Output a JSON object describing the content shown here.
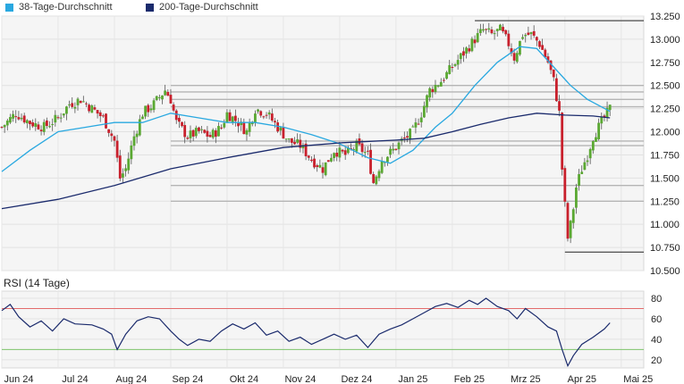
{
  "legend": {
    "items": [
      {
        "label": "38-Tage-Durchschnitt",
        "color": "#29a8e0"
      },
      {
        "label": "200-Tage-Durchschnitt",
        "color": "#1a2a6c"
      }
    ]
  },
  "rsi_title": "RSI (14 Tage)",
  "chart_data": [
    {
      "type": "candlestick",
      "title": "",
      "ylim": [
        10.5,
        13.25
      ],
      "y_ticks": [
        10.5,
        10.75,
        11.0,
        11.25,
        11.5,
        11.75,
        12.0,
        12.25,
        12.5,
        12.75,
        13.0,
        13.25
      ],
      "y_tick_labels": [
        "10.500",
        "10.750",
        "11.000",
        "11.250",
        "11.500",
        "11.750",
        "12.000",
        "12.250",
        "12.500",
        "12.750",
        "13.000",
        "13.250"
      ],
      "x_tick_labels": [
        "Jun 24",
        "Jul 24",
        "Aug 24",
        "Sep 24",
        "Okt 24",
        "Nov 24",
        "Dez 24",
        "Jan 25",
        "Feb 25",
        "Mrz 25",
        "Apr 25",
        "Mai 25"
      ],
      "x_tick_months": [
        0,
        1,
        2,
        3,
        4,
        5,
        6,
        7,
        8,
        9,
        10,
        11
      ],
      "x_range_months": [
        0,
        11.4
      ],
      "grid": true,
      "legend_position": "top-left",
      "up_color": "#5aa832",
      "down_color": "#c8202c",
      "price_path": [
        [
          0.0,
          12.05
        ],
        [
          0.25,
          12.2
        ],
        [
          0.5,
          12.1
        ],
        [
          0.75,
          12.05
        ],
        [
          1.0,
          12.15
        ],
        [
          1.2,
          12.3
        ],
        [
          1.4,
          12.35
        ],
        [
          1.6,
          12.25
        ],
        [
          1.8,
          12.15
        ],
        [
          2.0,
          11.9
        ],
        [
          2.1,
          11.5
        ],
        [
          2.2,
          11.6
        ],
        [
          2.35,
          11.95
        ],
        [
          2.5,
          12.2
        ],
        [
          2.7,
          12.3
        ],
        [
          2.9,
          12.45
        ],
        [
          3.0,
          12.35
        ],
        [
          3.1,
          12.1
        ],
        [
          3.3,
          11.95
        ],
        [
          3.5,
          12.0
        ],
        [
          3.7,
          11.95
        ],
        [
          3.9,
          12.05
        ],
        [
          4.0,
          12.2
        ],
        [
          4.2,
          12.1
        ],
        [
          4.35,
          12.0
        ],
        [
          4.5,
          12.25
        ],
        [
          4.7,
          12.2
        ],
        [
          4.9,
          12.05
        ],
        [
          5.1,
          11.9
        ],
        [
          5.3,
          11.85
        ],
        [
          5.5,
          11.7
        ],
        [
          5.7,
          11.6
        ],
        [
          5.9,
          11.8
        ],
        [
          6.1,
          11.75
        ],
        [
          6.3,
          11.85
        ],
        [
          6.5,
          11.75
        ],
        [
          6.6,
          11.45
        ],
        [
          6.75,
          11.7
        ],
        [
          6.95,
          11.8
        ],
        [
          7.1,
          11.9
        ],
        [
          7.3,
          12.0
        ],
        [
          7.45,
          12.2
        ],
        [
          7.6,
          12.45
        ],
        [
          7.8,
          12.55
        ],
        [
          8.0,
          12.7
        ],
        [
          8.2,
          12.85
        ],
        [
          8.4,
          13.0
        ],
        [
          8.55,
          13.1
        ],
        [
          8.7,
          13.05
        ],
        [
          8.85,
          13.1
        ],
        [
          9.0,
          12.95
        ],
        [
          9.1,
          12.8
        ],
        [
          9.25,
          13.05
        ],
        [
          9.4,
          13.05
        ],
        [
          9.55,
          12.95
        ],
        [
          9.7,
          12.75
        ],
        [
          9.8,
          12.55
        ],
        [
          9.9,
          12.2
        ],
        [
          9.95,
          11.6
        ],
        [
          10.0,
          11.2
        ],
        [
          10.05,
          10.85
        ],
        [
          10.12,
          11.05
        ],
        [
          10.2,
          11.4
        ],
        [
          10.3,
          11.6
        ],
        [
          10.4,
          11.75
        ],
        [
          10.5,
          11.95
        ],
        [
          10.6,
          12.05
        ],
        [
          10.7,
          12.15
        ],
        [
          10.8,
          12.25
        ]
      ],
      "series": [
        {
          "name": "38-Tage-Durchschnitt",
          "color": "#29a8e0",
          "points": [
            [
              0.0,
              11.57
            ],
            [
              0.5,
              11.8
            ],
            [
              1.0,
              12.0
            ],
            [
              1.5,
              12.05
            ],
            [
              2.0,
              12.1
            ],
            [
              2.5,
              12.1
            ],
            [
              3.0,
              12.2
            ],
            [
              3.5,
              12.15
            ],
            [
              4.0,
              12.1
            ],
            [
              4.5,
              12.1
            ],
            [
              5.0,
              12.05
            ],
            [
              5.5,
              11.97
            ],
            [
              6.0,
              11.87
            ],
            [
              6.5,
              11.72
            ],
            [
              6.9,
              11.66
            ],
            [
              7.3,
              11.8
            ],
            [
              7.7,
              12.05
            ],
            [
              8.0,
              12.2
            ],
            [
              8.4,
              12.5
            ],
            [
              8.8,
              12.75
            ],
            [
              9.2,
              12.92
            ],
            [
              9.5,
              12.9
            ],
            [
              9.8,
              12.7
            ],
            [
              10.1,
              12.5
            ],
            [
              10.4,
              12.35
            ],
            [
              10.8,
              12.22
            ]
          ]
        },
        {
          "name": "200-Tage-Durchschnitt",
          "color": "#1a2a6c",
          "points": [
            [
              0.0,
              11.17
            ],
            [
              1.0,
              11.27
            ],
            [
              2.0,
              11.42
            ],
            [
              3.0,
              11.6
            ],
            [
              4.0,
              11.72
            ],
            [
              5.0,
              11.83
            ],
            [
              6.0,
              11.88
            ],
            [
              7.0,
              11.91
            ],
            [
              7.5,
              11.93
            ],
            [
              8.0,
              12.0
            ],
            [
              8.5,
              12.08
            ],
            [
              9.0,
              12.15
            ],
            [
              9.5,
              12.2
            ],
            [
              10.0,
              12.18
            ],
            [
              10.5,
              12.17
            ],
            [
              10.8,
              12.15
            ]
          ]
        }
      ],
      "horizontal_levels": [
        13.2,
        12.5,
        12.43,
        12.35,
        12.27,
        11.9,
        11.85,
        11.42,
        11.25,
        10.7
      ],
      "last_close": 12.25
    },
    {
      "type": "line",
      "title": "RSI (14 Tage)",
      "ylim": [
        12,
        87
      ],
      "y_ticks": [
        20,
        40,
        60,
        80
      ],
      "y_tick_labels": [
        "20",
        "40",
        "60",
        "80"
      ],
      "reference_lines": [
        {
          "value": 70,
          "color": "#e36b6b"
        },
        {
          "value": 30,
          "color": "#7cc46a"
        }
      ],
      "series": [
        {
          "name": "",
          "color": "#1a2a6c",
          "points": [
            [
              0.0,
              68
            ],
            [
              0.15,
              74
            ],
            [
              0.3,
              62
            ],
            [
              0.5,
              52
            ],
            [
              0.7,
              58
            ],
            [
              0.9,
              48
            ],
            [
              1.1,
              60
            ],
            [
              1.3,
              55
            ],
            [
              1.6,
              54
            ],
            [
              1.8,
              50
            ],
            [
              1.95,
              45
            ],
            [
              2.05,
              30
            ],
            [
              2.2,
              45
            ],
            [
              2.4,
              58
            ],
            [
              2.6,
              62
            ],
            [
              2.8,
              60
            ],
            [
              3.0,
              48
            ],
            [
              3.15,
              40
            ],
            [
              3.3,
              34
            ],
            [
              3.5,
              40
            ],
            [
              3.7,
              38
            ],
            [
              3.9,
              48
            ],
            [
              4.1,
              55
            ],
            [
              4.3,
              50
            ],
            [
              4.5,
              56
            ],
            [
              4.7,
              44
            ],
            [
              4.9,
              48
            ],
            [
              5.1,
              38
            ],
            [
              5.3,
              42
            ],
            [
              5.5,
              35
            ],
            [
              5.7,
              40
            ],
            [
              5.9,
              45
            ],
            [
              6.1,
              40
            ],
            [
              6.3,
              44
            ],
            [
              6.5,
              32
            ],
            [
              6.7,
              45
            ],
            [
              6.9,
              50
            ],
            [
              7.1,
              54
            ],
            [
              7.3,
              60
            ],
            [
              7.5,
              66
            ],
            [
              7.7,
              72
            ],
            [
              7.9,
              75
            ],
            [
              8.1,
              71
            ],
            [
              8.3,
              78
            ],
            [
              8.45,
              74
            ],
            [
              8.6,
              80
            ],
            [
              8.8,
              72
            ],
            [
              9.0,
              68
            ],
            [
              9.15,
              60
            ],
            [
              9.3,
              70
            ],
            [
              9.5,
              62
            ],
            [
              9.7,
              52
            ],
            [
              9.85,
              48
            ],
            [
              9.95,
              30
            ],
            [
              10.05,
              14
            ],
            [
              10.15,
              24
            ],
            [
              10.3,
              35
            ],
            [
              10.5,
              42
            ],
            [
              10.7,
              50
            ],
            [
              10.8,
              56
            ]
          ]
        }
      ]
    }
  ]
}
